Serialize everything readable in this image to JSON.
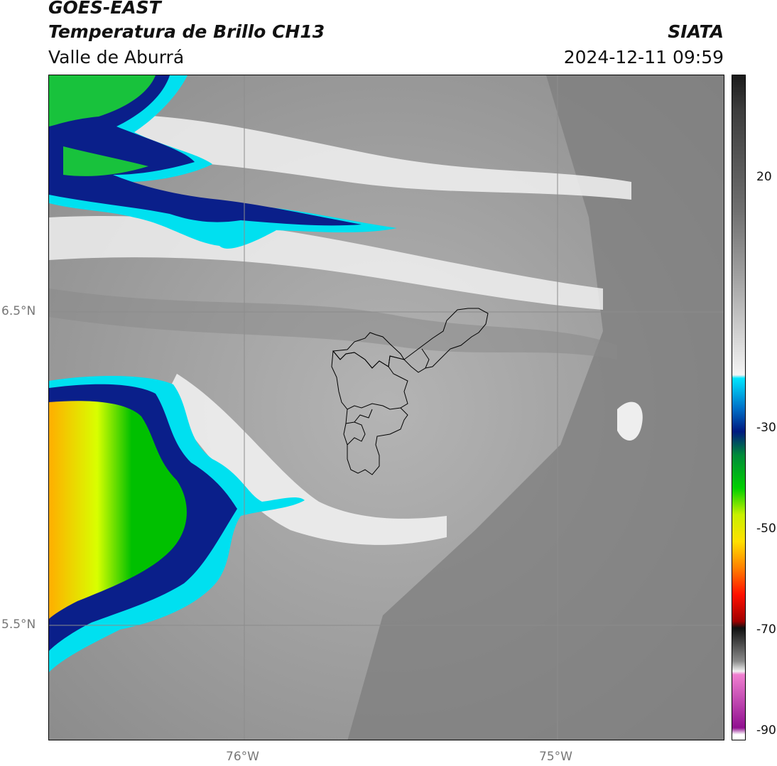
{
  "header": {
    "satellite": "GOES-EAST",
    "product": "Temperatura de Brillo CH13",
    "region": "Valle de Aburrá",
    "agency": "SIATA",
    "datetime": "2024-12-11 09:59"
  },
  "map": {
    "lat_ticks": [
      "6.5°N",
      "5.5°N"
    ],
    "lon_ticks": [
      "76°W",
      "75°W"
    ],
    "boundary": "Valle de Aburrá municipalities outline",
    "gridlines": true
  },
  "colorbar": {
    "tick_labels": [
      "20",
      "-30",
      "-50",
      "-70",
      "-90"
    ],
    "stops": [
      {
        "color": "#1a1a1a"
      },
      {
        "color": "#3c3c3c"
      },
      {
        "color": "#6e6e6e"
      },
      {
        "color": "#a0a0a0"
      },
      {
        "color": "#d8d8d8"
      },
      {
        "color": "#f4f4f4"
      },
      {
        "color": "#00e5ff"
      },
      {
        "color": "#0070c8"
      },
      {
        "color": "#001a80"
      },
      {
        "color": "#008a3a"
      },
      {
        "color": "#00d000"
      },
      {
        "color": "#c8f000"
      },
      {
        "color": "#ffe000"
      },
      {
        "color": "#ff8000"
      },
      {
        "color": "#ff1000"
      },
      {
        "color": "#a00000"
      },
      {
        "color": "#101010"
      },
      {
        "color": "#8a8a8a"
      },
      {
        "color": "#f0f0f0"
      },
      {
        "color": "#f080d0"
      },
      {
        "color": "#901090"
      },
      {
        "color": "#ffffff"
      }
    ]
  }
}
